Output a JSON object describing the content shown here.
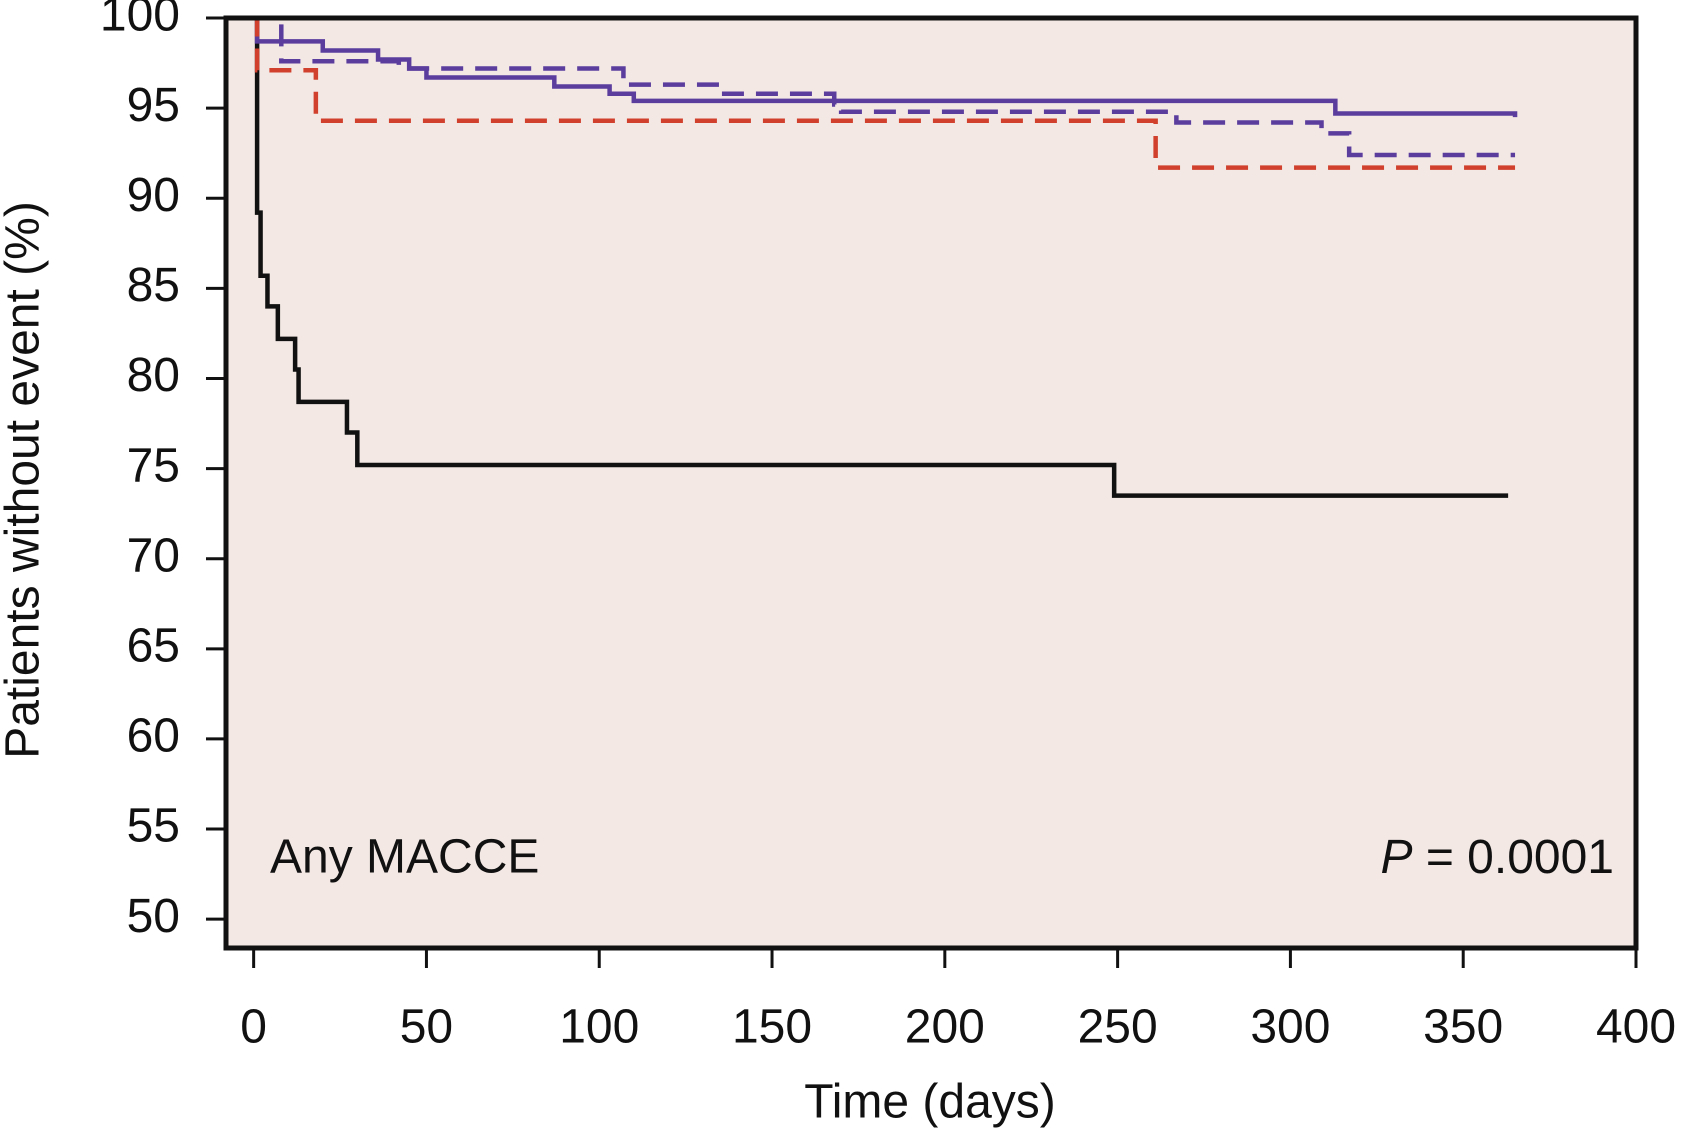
{
  "chart_data": {
    "type": "step",
    "xlabel": "Time (days)",
    "ylabel": "Patients without event (%)",
    "annotation": "Any MACCE",
    "p_value": {
      "symbol": "P",
      "text": "= 0.0001"
    },
    "background": "#f3e8e4",
    "xlim": [
      -8,
      400
    ],
    "ylim": [
      48.4,
      100
    ],
    "xticks": [
      0,
      50,
      100,
      150,
      200,
      250,
      300,
      350,
      400
    ],
    "yticks": [
      50,
      55,
      60,
      65,
      70,
      75,
      80,
      85,
      90,
      95,
      100
    ],
    "series": [
      {
        "color": "#111111",
        "dash": "solid",
        "x": [
          0,
          1,
          2,
          4,
          7,
          12,
          13,
          27,
          30,
          249,
          363
        ],
        "values": [
          100,
          89.2,
          85.7,
          84,
          82.2,
          80.5,
          78.7,
          77,
          75.2,
          73.5,
          73.5
        ]
      },
      {
        "color": "#5b3d9e",
        "dash": "solid",
        "x": [
          0,
          1,
          20,
          36,
          45,
          50,
          87,
          103,
          110,
          313,
          365
        ],
        "values": [
          100,
          98.7,
          98.2,
          97.7,
          97.2,
          96.7,
          96.2,
          95.8,
          95.4,
          94.7,
          94.5
        ]
      },
      {
        "color": "#5b3d9e",
        "dash": "dashed",
        "x": [
          0,
          8,
          42,
          107,
          135,
          168,
          170,
          267,
          309,
          317,
          365
        ],
        "values": [
          100,
          97.6,
          97.2,
          96.3,
          95.8,
          95.2,
          94.8,
          94.2,
          93.6,
          92.4,
          92.4
        ]
      },
      {
        "color": "#d0402c",
        "dash": "dashed",
        "x": [
          0,
          1,
          18,
          261,
          365
        ],
        "values": [
          100,
          97.1,
          94.3,
          91.7,
          91.7
        ]
      }
    ]
  }
}
